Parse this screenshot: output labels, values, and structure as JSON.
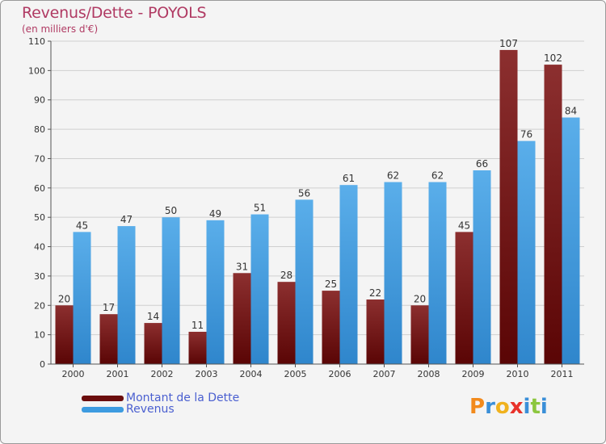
{
  "header": {
    "title": "Revenus/Dette - POYOLS",
    "subtitle": "(en milliers d'€)"
  },
  "legend": {
    "items": [
      {
        "label": "Montant de la Dette",
        "color": "#6b0d0d"
      },
      {
        "label": "Revenus",
        "color": "#3d9be0"
      }
    ]
  },
  "logo": {
    "text": "Proxiti",
    "letters": [
      {
        "ch": "P",
        "color": "#f28a1c"
      },
      {
        "ch": "r",
        "color": "#3a8fd8"
      },
      {
        "ch": "o",
        "color": "#f0b21e"
      },
      {
        "ch": "x",
        "color": "#e8322a"
      },
      {
        "ch": "i",
        "color": "#3a8fd8"
      },
      {
        "ch": "t",
        "color": "#8cc63e"
      },
      {
        "ch": "i",
        "color": "#3a8fd8"
      }
    ]
  },
  "chart_data": {
    "type": "bar",
    "title": "Revenus/Dette - POYOLS",
    "ylabel": "(en milliers d'€)",
    "xlabel": "",
    "categories": [
      "2000",
      "2001",
      "2002",
      "2003",
      "2004",
      "2005",
      "2006",
      "2007",
      "2008",
      "2009",
      "2010",
      "2011"
    ],
    "series": [
      {
        "name": "Montant de la Dette",
        "color": "#6b0d0d",
        "values": [
          20,
          17,
          14,
          11,
          31,
          28,
          25,
          22,
          20,
          45,
          107,
          102
        ]
      },
      {
        "name": "Revenus",
        "color": "#3d9be0",
        "values": [
          45,
          47,
          50,
          49,
          51,
          56,
          61,
          62,
          62,
          66,
          76,
          84
        ]
      }
    ],
    "ylim": [
      0,
      110
    ],
    "yticks": [
      0,
      10,
      20,
      30,
      40,
      50,
      60,
      70,
      80,
      90,
      100,
      110
    ],
    "grid": true,
    "legend_position": "bottom-left"
  }
}
